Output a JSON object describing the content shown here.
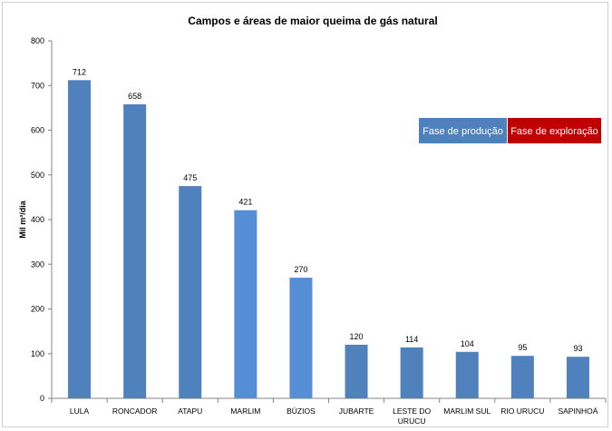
{
  "chart_data": {
    "type": "bar",
    "title": "Campos e áreas de maior queima de gás natural",
    "ylabel": "Mil m³/dia",
    "xlabel": "",
    "ylim": [
      0,
      800
    ],
    "yticks": [
      0,
      100,
      200,
      300,
      400,
      500,
      600,
      700,
      800
    ],
    "grid": false,
    "categories": [
      "LULA",
      "RONCADOR",
      "ATAPU",
      "MARLIM",
      "BÚZIOS",
      "JUBARTE",
      "LESTE DO URUCU",
      "MARLIM SUL",
      "RIO URUCU",
      "SAPINHOÁ"
    ],
    "category_lines": [
      [
        "LULA"
      ],
      [
        "RONCADOR"
      ],
      [
        "ATAPU"
      ],
      [
        "MARLIM"
      ],
      [
        "BÚZIOS"
      ],
      [
        "JUBARTE"
      ],
      [
        "LESTE DO",
        "URUCU"
      ],
      [
        "MARLIM SUL"
      ],
      [
        "RIO URUCU"
      ],
      [
        "SAPINHOÁ"
      ]
    ],
    "values": [
      712,
      658,
      475,
      421,
      270,
      120,
      114,
      104,
      95,
      93
    ],
    "bar_colors": [
      "#4f81bd",
      "#4f81bd",
      "#4f81bd",
      "#558ed5",
      "#558ed5",
      "#4f81bd",
      "#4f81bd",
      "#4f81bd",
      "#4f81bd",
      "#4f81bd"
    ],
    "legend_position": "right",
    "legend": [
      {
        "label": "Fase de produção",
        "color": "#4f81bd"
      },
      {
        "label": "Fase de exploração",
        "color": "#c00000"
      }
    ]
  }
}
